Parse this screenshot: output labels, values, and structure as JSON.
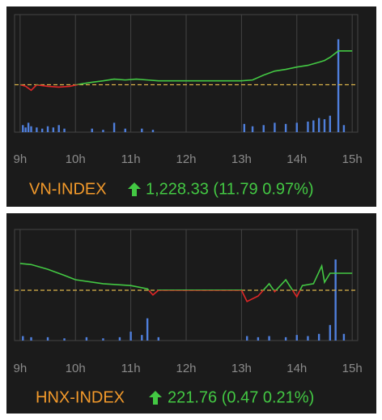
{
  "chart_data": [
    {
      "type": "line",
      "title": "VN-INDEX",
      "summary": "1,228.33 (11.79 0.97%)",
      "x": [
        9.0,
        9.1,
        9.2,
        9.3,
        9.5,
        9.7,
        9.9,
        10.1,
        10.3,
        10.5,
        10.7,
        10.9,
        11.1,
        11.3,
        11.5,
        13.0,
        13.2,
        13.4,
        13.6,
        13.8,
        14.0,
        14.2,
        14.4,
        14.5,
        14.6,
        14.75,
        15.0
      ],
      "values": [
        1216.54,
        1216.0,
        1214.6,
        1216.5,
        1216.0,
        1215.7,
        1216.0,
        1216.8,
        1217.4,
        1217.9,
        1218.5,
        1218.2,
        1218.5,
        1218.2,
        1217.9,
        1217.9,
        1218.2,
        1219.9,
        1221.3,
        1221.9,
        1222.7,
        1223.3,
        1224.4,
        1225.0,
        1226.1,
        1228.33,
        1228.33
      ],
      "reference": 1216.54,
      "volume": {
        "x": [
          9.05,
          9.1,
          9.15,
          9.2,
          9.3,
          9.4,
          9.5,
          9.6,
          9.7,
          9.8,
          10.3,
          10.5,
          10.7,
          10.9,
          11.2,
          11.4,
          13.05,
          13.2,
          13.4,
          13.6,
          13.8,
          14.0,
          14.2,
          14.3,
          14.4,
          14.5,
          14.6,
          14.75,
          14.85
        ],
        "values": [
          6,
          4,
          8,
          5,
          4,
          3,
          5,
          4,
          6,
          3,
          3,
          2,
          8,
          3,
          3,
          2,
          7,
          5,
          6,
          8,
          7,
          8,
          9,
          10,
          12,
          11,
          14,
          79,
          6
        ],
        "vlim": [
          0,
          100
        ]
      },
      "xlim": [
        8.9,
        15.1
      ],
      "ylim": [
        1200,
        1241
      ],
      "xticks": [
        {
          "value": 9,
          "label": "9h"
        },
        {
          "value": 10,
          "label": "10h"
        },
        {
          "value": 11,
          "label": "11h"
        },
        {
          "value": 12,
          "label": "12h"
        },
        {
          "value": 13,
          "label": "13h"
        },
        {
          "value": 14,
          "label": "14h"
        },
        {
          "value": 15,
          "label": "15h"
        }
      ],
      "up_color": "#43c843",
      "down_color": "#e02626",
      "reference_color": "#d9b24a",
      "volume_color": "#4f7fdc",
      "title_color": "#f39a2b",
      "grid": true
    },
    {
      "type": "line",
      "title": "HNX-INDEX",
      "summary": "221.76 (0.47 0.21%)",
      "x": [
        9.0,
        9.2,
        9.5,
        9.8,
        10.0,
        10.5,
        11.0,
        11.3,
        11.4,
        11.5,
        13.0,
        13.1,
        13.3,
        13.5,
        13.6,
        13.8,
        14.0,
        14.1,
        14.3,
        14.45,
        14.5,
        14.6,
        15.0
      ],
      "values": [
        222.03,
        222.0,
        221.87,
        221.7,
        221.58,
        221.47,
        221.42,
        221.33,
        221.16,
        221.29,
        221.29,
        220.98,
        221.13,
        221.47,
        221.25,
        221.58,
        221.11,
        221.42,
        221.47,
        221.96,
        221.51,
        221.76,
        221.76
      ],
      "reference": 221.29,
      "volume": {
        "x": [
          9.05,
          9.2,
          9.5,
          9.8,
          10.2,
          10.5,
          10.8,
          11.0,
          11.2,
          11.3,
          11.5,
          13.1,
          13.3,
          13.5,
          13.8,
          14.0,
          14.2,
          14.4,
          14.6,
          14.7,
          14.85
        ],
        "values": [
          4,
          3,
          3,
          2,
          3,
          2,
          3,
          8,
          5,
          20,
          3,
          4,
          3,
          4,
          3,
          5,
          4,
          6,
          14,
          73,
          6
        ],
        "vlim": [
          0,
          100
        ]
      },
      "xlim": [
        8.9,
        15.1
      ],
      "ylim": [
        219.9,
        222.97
      ],
      "xticks": [
        {
          "value": 9,
          "label": "9h"
        },
        {
          "value": 10,
          "label": "10h"
        },
        {
          "value": 11,
          "label": "11h"
        },
        {
          "value": 12,
          "label": "12h"
        },
        {
          "value": 13,
          "label": "13h"
        },
        {
          "value": 14,
          "label": "14h"
        },
        {
          "value": 15,
          "label": "15h"
        }
      ],
      "up_color": "#43c843",
      "down_color": "#e02626",
      "reference_color": "#d9b24a",
      "volume_color": "#4f7fdc",
      "title_color": "#f39a2b",
      "grid": true
    }
  ]
}
